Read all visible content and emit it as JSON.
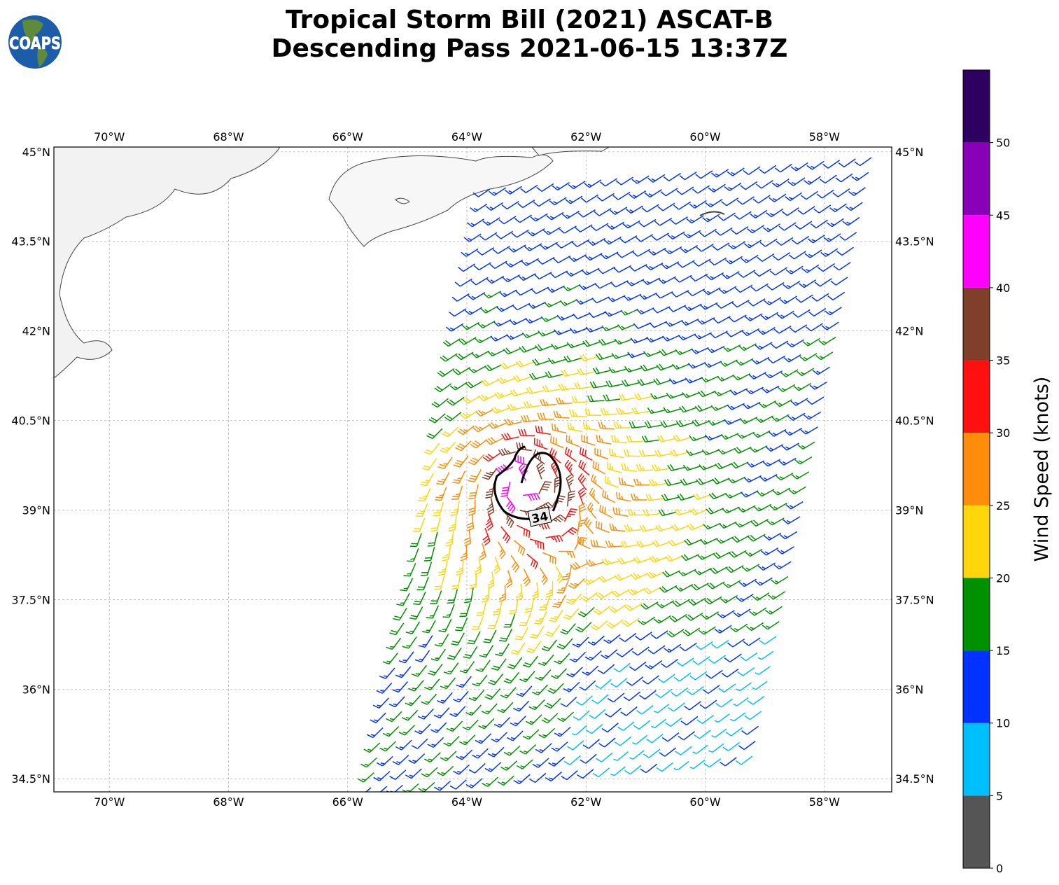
{
  "title_line1": "Tropical Storm Bill (2021) ASCAT-B",
  "title_line2": "Descending Pass 2021-06-15 13:37Z",
  "logo_text": "COAPS",
  "map": {
    "lon_range": [
      -70.93,
      -56.87
    ],
    "lat_range": [
      34.28,
      45.08
    ],
    "lon_ticks": [
      "70°W",
      "68°W",
      "66°W",
      "64°W",
      "62°W",
      "60°W",
      "58°W"
    ],
    "lon_values": [
      -70,
      -68,
      -66,
      -64,
      -62,
      -60,
      -58
    ],
    "lat_ticks": [
      "45°N",
      "43.5°N",
      "42°N",
      "40.5°N",
      "39°N",
      "37.5°N",
      "36°N",
      "34.5°N"
    ],
    "lat_values": [
      45,
      43.5,
      42,
      40.5,
      39,
      37.5,
      36,
      34.5
    ],
    "gridlines": true,
    "storm_center": {
      "lon": -63.1,
      "lat": 39.45
    },
    "contour_label": "34",
    "contour_units_knots": 34
  },
  "colorbar": {
    "label": "Wind Speed (knots)",
    "ticks": [
      "0",
      "5",
      "10",
      "15",
      "20",
      "25",
      "30",
      "35",
      "40",
      "45",
      "50"
    ],
    "bounds": [
      0,
      5,
      10,
      15,
      20,
      25,
      30,
      35,
      40,
      45,
      50,
      55
    ],
    "colors": [
      "#555555",
      "#00bfff",
      "#0033ff",
      "#009100",
      "#ffd50b",
      "#ff8c0a",
      "#ff1010",
      "#7f3f2a",
      "#ff00ff",
      "#8800b8",
      "#2e0060"
    ]
  }
}
